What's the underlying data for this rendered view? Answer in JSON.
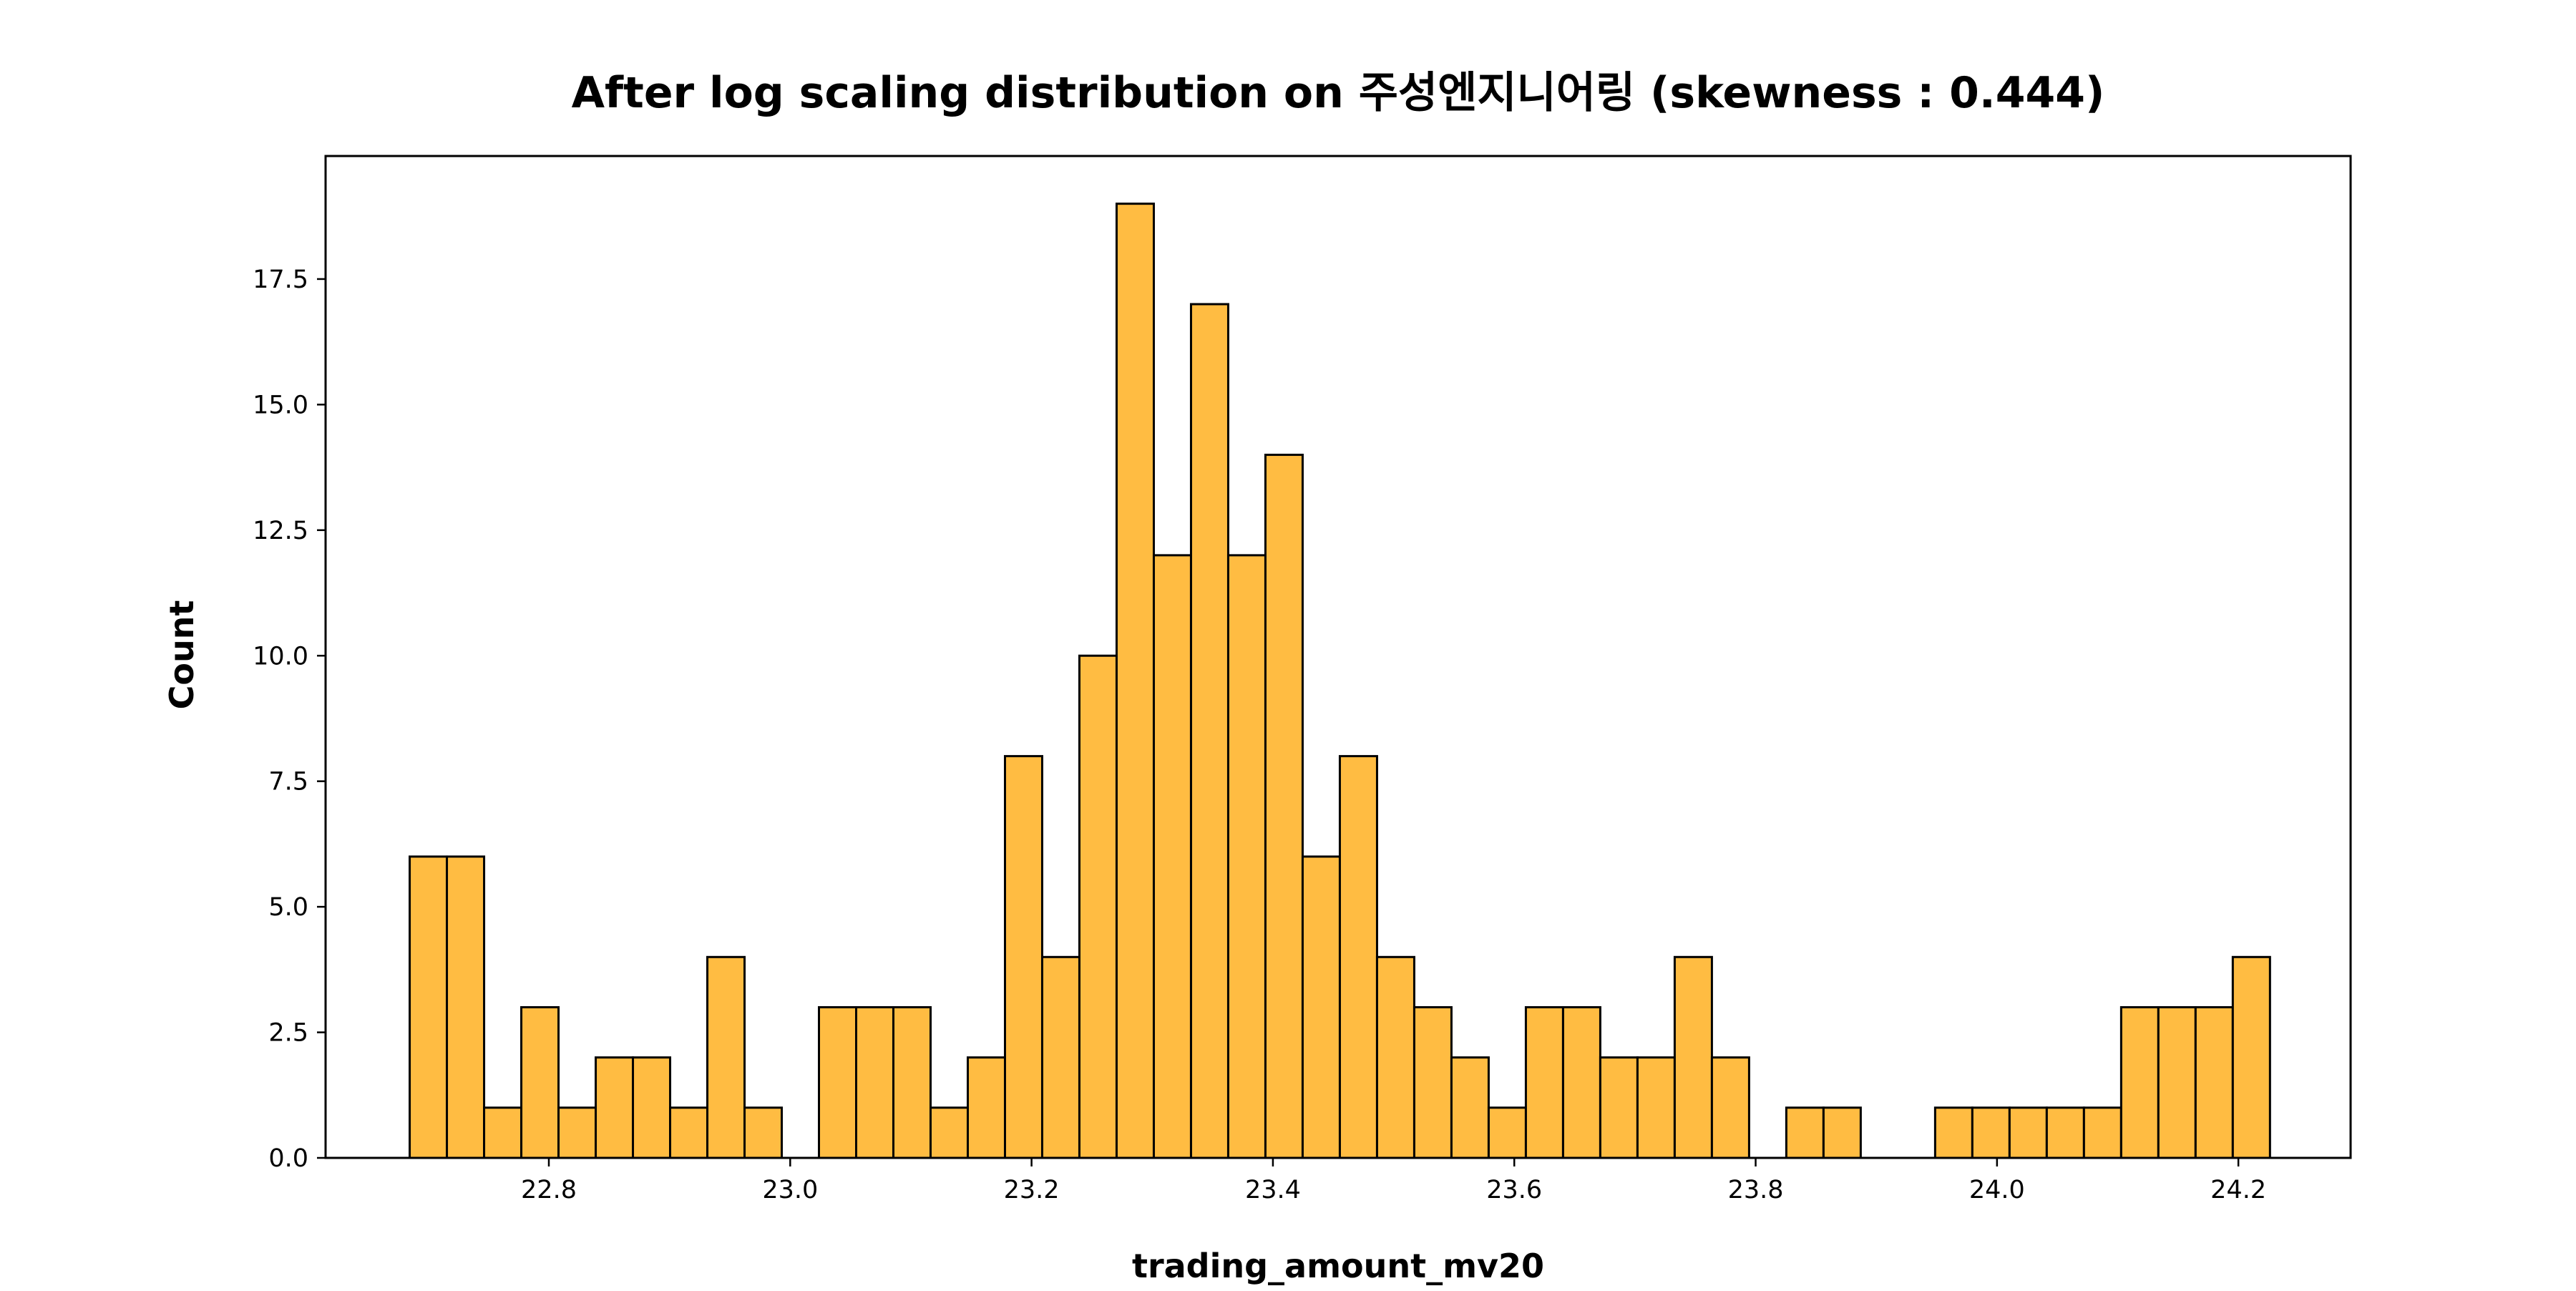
{
  "chart_data": {
    "type": "bar",
    "title": "After log scaling distribution on 주성엔지니어링 (skewness : 0.444)",
    "xlabel": "trading_amount_mv20",
    "ylabel": "Count",
    "xlim": [
      22.615,
      24.293
    ],
    "ylim": [
      0,
      19.95
    ],
    "xticks": [
      "22.8",
      "23.0",
      "23.2",
      "23.4",
      "23.6",
      "23.8",
      "24.0",
      "24.2"
    ],
    "yticks": [
      "0.0",
      "2.5",
      "5.0",
      "7.5",
      "10.0",
      "12.5",
      "15.0",
      "17.5"
    ],
    "bin_start": 22.6847,
    "bin_width": 0.03083,
    "bin_counts": [
      6,
      6,
      1,
      3,
      1,
      2,
      2,
      1,
      4,
      1,
      0,
      3,
      3,
      3,
      1,
      2,
      8,
      4,
      10,
      19,
      12,
      17,
      12,
      14,
      6,
      8,
      4,
      3,
      2,
      1,
      3,
      3,
      2,
      2,
      4,
      2,
      0,
      1,
      1,
      0,
      0,
      1,
      1,
      1,
      1,
      1,
      3,
      3,
      3,
      4
    ],
    "grid": false,
    "legend": "none",
    "bar_color": "#FFBC42",
    "edge_color": "#000000"
  }
}
